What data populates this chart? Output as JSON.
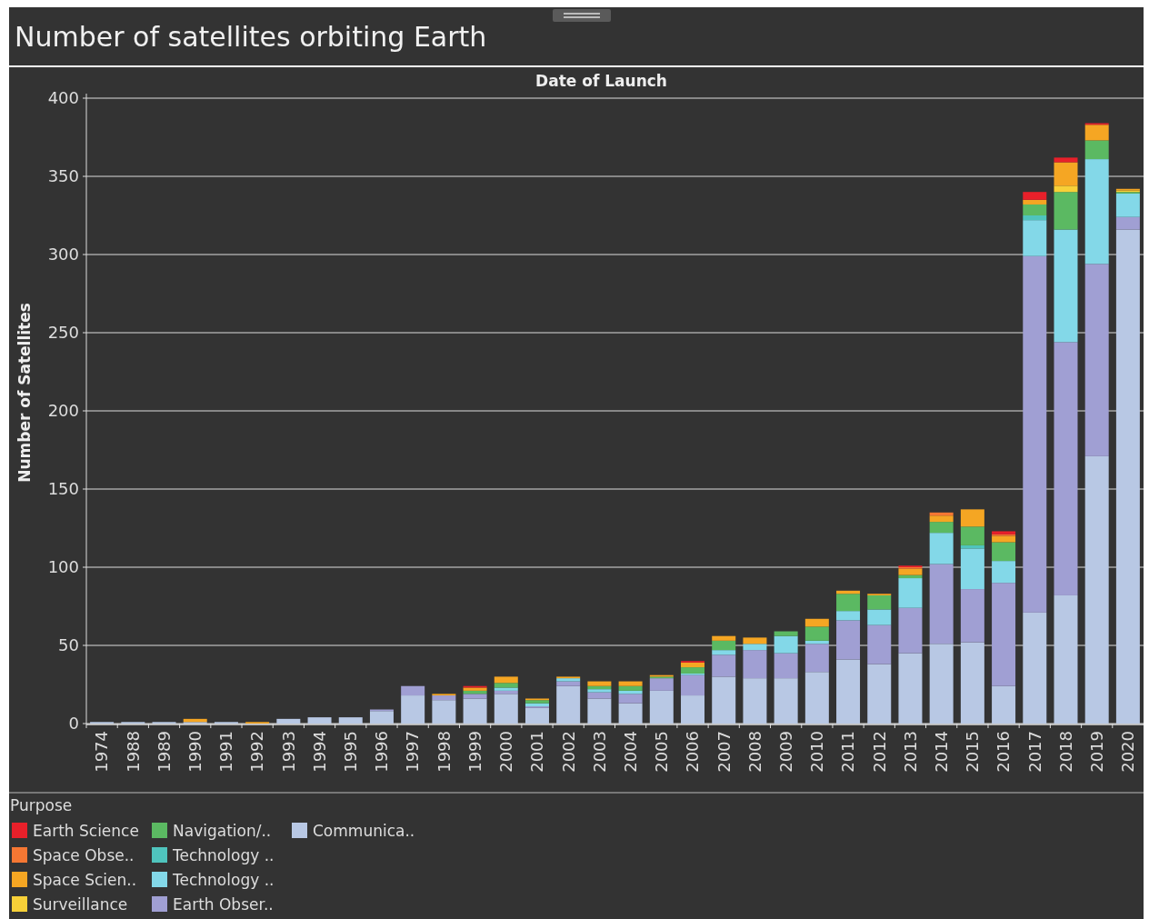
{
  "chart_data": {
    "type": "bar",
    "title": "Number of satellites orbiting Earth",
    "xlabel": "Date of Launch",
    "ylabel": "Number of Satellites",
    "legend_title": "Purpose",
    "categories": [
      "1974",
      "1988",
      "1989",
      "1990",
      "1991",
      "1992",
      "1993",
      "1994",
      "1995",
      "1996",
      "1997",
      "1998",
      "1999",
      "2000",
      "2001",
      "2002",
      "2003",
      "2004",
      "2005",
      "2006",
      "2007",
      "2008",
      "2009",
      "2010",
      "2011",
      "2012",
      "2013",
      "2014",
      "2015",
      "2016",
      "2017",
      "2018",
      "2019",
      "2020"
    ],
    "stacked": true,
    "ylim": [
      0,
      400
    ],
    "yticks": [
      0,
      50,
      100,
      150,
      200,
      250,
      300,
      350,
      400
    ],
    "grid": "y",
    "legend": "bottom",
    "series": [
      {
        "name": "Communica..",
        "color": "#b8c8e4",
        "values": [
          1,
          1,
          1,
          1,
          1,
          0,
          3,
          4,
          4,
          8,
          18,
          15,
          16,
          19,
          10,
          24,
          16,
          13,
          21,
          18,
          30,
          29,
          29,
          33,
          41,
          38,
          45,
          51,
          52,
          24,
          71,
          82,
          171,
          316
        ]
      },
      {
        "name": "Earth Obser..",
        "color": "#a09fd3",
        "values": [
          0,
          0,
          0,
          0,
          0,
          0,
          0,
          0,
          0,
          1,
          6,
          3,
          3,
          2,
          1,
          3,
          4,
          6,
          8,
          13,
          14,
          18,
          16,
          18,
          25,
          25,
          29,
          51,
          34,
          66,
          228,
          162,
          123,
          8
        ]
      },
      {
        "name": "Technology ..",
        "color": "#83d8e8",
        "values": [
          0,
          0,
          0,
          0,
          0,
          0,
          0,
          0,
          0,
          0,
          0,
          0,
          0,
          2,
          2,
          2,
          2,
          2,
          0,
          1,
          3,
          4,
          11,
          2,
          6,
          10,
          19,
          20,
          26,
          14,
          23,
          72,
          67,
          15
        ]
      },
      {
        "name": "Technology ..",
        "color": "#4fc4bd",
        "values": [
          0,
          0,
          0,
          0,
          0,
          0,
          0,
          0,
          0,
          0,
          0,
          0,
          0,
          0,
          0,
          0,
          0,
          0,
          0,
          0,
          0,
          0,
          0,
          0,
          0,
          0,
          0,
          0,
          2,
          0,
          3,
          0,
          0,
          0
        ]
      },
      {
        "name": "Navigation/..",
        "color": "#5bb962",
        "values": [
          0,
          0,
          0,
          0,
          0,
          0,
          0,
          0,
          0,
          0,
          0,
          0,
          2,
          3,
          2,
          0,
          2,
          3,
          1,
          4,
          6,
          0,
          3,
          9,
          11,
          9,
          2,
          7,
          12,
          12,
          7,
          24,
          12,
          1
        ]
      },
      {
        "name": "Surveillance",
        "color": "#f7d038",
        "values": [
          0,
          0,
          0,
          0,
          0,
          0,
          0,
          0,
          0,
          0,
          0,
          0,
          0,
          0,
          0,
          0,
          0,
          0,
          0,
          0,
          0,
          0,
          0,
          0,
          0,
          0,
          0,
          0,
          0,
          0,
          0,
          4,
          0,
          1
        ]
      },
      {
        "name": "Space Scien..",
        "color": "#f5a623",
        "values": [
          0,
          0,
          0,
          2,
          0,
          1,
          0,
          0,
          0,
          0,
          0,
          1,
          2,
          4,
          1,
          1,
          3,
          3,
          1,
          3,
          3,
          4,
          0,
          5,
          2,
          1,
          4,
          4,
          11,
          4,
          3,
          15,
          10,
          1
        ]
      },
      {
        "name": "Space Obse..",
        "color": "#f57733",
        "values": [
          0,
          0,
          0,
          0,
          0,
          0,
          0,
          0,
          0,
          0,
          0,
          0,
          0,
          0,
          0,
          0,
          0,
          0,
          0,
          0,
          0,
          0,
          0,
          0,
          0,
          0,
          1,
          2,
          0,
          1,
          0,
          0,
          0,
          0
        ]
      },
      {
        "name": "Earth Science",
        "color": "#e8202a",
        "values": [
          0,
          0,
          0,
          0,
          0,
          0,
          0,
          0,
          0,
          0,
          0,
          0,
          1,
          0,
          0,
          0,
          0,
          0,
          0,
          1,
          0,
          0,
          0,
          0,
          0,
          0,
          1,
          0,
          0,
          2,
          5,
          3,
          1,
          0
        ]
      }
    ]
  }
}
